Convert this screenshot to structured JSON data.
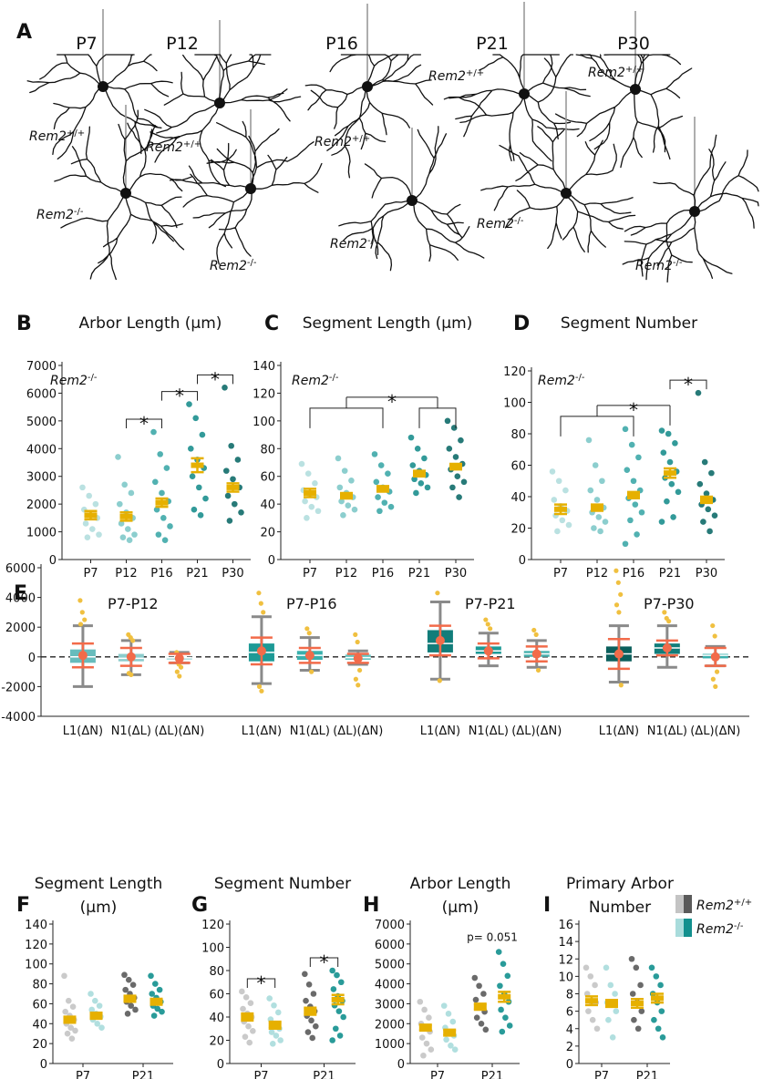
{
  "panel_a": {
    "letter": "A",
    "ages": [
      "P7",
      "P12",
      "P16",
      "P21",
      "P30"
    ],
    "wt_label": {
      "base": "Rem2",
      "sup": "+/+"
    },
    "ko_label": {
      "base": "Rem2",
      "sup": "-/-"
    }
  },
  "chart_data": [
    {
      "type": "strip",
      "letter": "B",
      "title": [
        "Arbor Length (µm)"
      ],
      "annotation": {
        "base": "Rem2",
        "sup": "-/-"
      },
      "categories": [
        "P7",
        "P12",
        "P16",
        "P21",
        "P30"
      ],
      "colors": [
        "#b2dede",
        "#7fc9c9",
        "#3ea8a8",
        "#1c8f8e",
        "#0f6b69"
      ],
      "mean_color": "#e6b000",
      "points": [
        [
          2600,
          2300,
          2000,
          1800,
          1600,
          1500,
          1300,
          1100,
          900,
          800
        ],
        [
          3700,
          2700,
          2400,
          2000,
          1700,
          1500,
          1300,
          1100,
          900,
          800,
          700
        ],
        [
          4600,
          3800,
          3300,
          2800,
          2400,
          2100,
          1800,
          1500,
          1200,
          900,
          700
        ],
        [
          5600,
          5100,
          4500,
          4000,
          3600,
          3300,
          3000,
          2600,
          2200,
          1800,
          1600
        ],
        [
          6200,
          4100,
          3600,
          3200,
          2900,
          2600,
          2300,
          2000,
          1700,
          1400
        ]
      ],
      "means": [
        1600,
        1550,
        2050,
        3400,
        2600
      ],
      "sems": [
        150,
        150,
        150,
        250,
        150
      ],
      "ylim": [
        0,
        7000
      ],
      "yticks": [
        0,
        1000,
        2000,
        3000,
        4000,
        5000,
        6000,
        7000
      ],
      "brackets": [
        {
          "groups": [
            [
              1
            ],
            [
              2
            ]
          ],
          "label": "*"
        },
        {
          "groups": [
            [
              2
            ],
            [
              3
            ]
          ],
          "label": "*"
        },
        {
          "groups": [
            [
              3
            ],
            [
              4
            ]
          ],
          "label": "*"
        }
      ]
    },
    {
      "type": "strip",
      "letter": "C",
      "title": [
        "Segment Length (µm)"
      ],
      "annotation": {
        "base": "Rem2",
        "sup": "-/-"
      },
      "categories": [
        "P7",
        "P12",
        "P16",
        "P21",
        "P30"
      ],
      "colors": [
        "#b2dede",
        "#7fc9c9",
        "#3ea8a8",
        "#1c8f8e",
        "#0f6b69"
      ],
      "mean_color": "#e6b000",
      "points": [
        [
          69,
          62,
          55,
          50,
          47,
          45,
          42,
          38,
          35,
          30
        ],
        [
          73,
          64,
          57,
          52,
          48,
          45,
          42,
          39,
          36,
          32
        ],
        [
          76,
          68,
          62,
          56,
          52,
          49,
          45,
          41,
          38,
          35
        ],
        [
          88,
          80,
          73,
          68,
          64,
          61,
          58,
          55,
          52,
          48
        ],
        [
          100,
          95,
          86,
          80,
          74,
          69,
          65,
          60,
          56,
          52,
          45
        ]
      ],
      "means": [
        48,
        46,
        51,
        62,
        67
      ],
      "sems": [
        3,
        2,
        2,
        2,
        2
      ],
      "ylim": [
        0,
        140
      ],
      "yticks": [
        0,
        20,
        40,
        60,
        80,
        100,
        120,
        140
      ],
      "brackets": [
        {
          "groups": [
            [
              0,
              2
            ],
            [
              3,
              4
            ]
          ],
          "label": "*"
        }
      ]
    },
    {
      "type": "strip",
      "letter": "D",
      "title": [
        "Segment Number"
      ],
      "annotation": {
        "base": "Rem2",
        "sup": "-/-"
      },
      "categories": [
        "P7",
        "P12",
        "P16",
        "P21",
        "P30"
      ],
      "colors": [
        "#b2dede",
        "#7fc9c9",
        "#3ea8a8",
        "#1c8f8e",
        "#0f6b69"
      ],
      "mean_color": "#e6b000",
      "points": [
        [
          56,
          50,
          44,
          38,
          34,
          31,
          28,
          25,
          22,
          18
        ],
        [
          76,
          60,
          50,
          44,
          38,
          33,
          30,
          27,
          24,
          20,
          18
        ],
        [
          83,
          73,
          65,
          57,
          50,
          44,
          39,
          35,
          30,
          25,
          16,
          10
        ],
        [
          82,
          80,
          74,
          68,
          62,
          56,
          52,
          48,
          43,
          37,
          27,
          24
        ],
        [
          106,
          62,
          55,
          48,
          42,
          38,
          35,
          32,
          28,
          24,
          18
        ]
      ],
      "means": [
        32,
        33,
        41,
        55,
        38
      ],
      "sems": [
        3,
        2,
        2,
        3,
        2
      ],
      "ylim": [
        0,
        120
      ],
      "yticks": [
        0,
        20,
        40,
        60,
        80,
        100,
        120
      ],
      "brackets": [
        {
          "groups": [
            [
              0,
              2
            ],
            [
              3
            ]
          ],
          "label": "*"
        },
        {
          "groups": [
            [
              3
            ],
            [
              4
            ]
          ],
          "label": "*"
        }
      ]
    },
    {
      "type": "box",
      "letter": "E",
      "ylim": [
        -4000,
        6000
      ],
      "yticks": [
        -4000,
        -2000,
        0,
        2000,
        4000,
        6000
      ],
      "reference_line": 0,
      "whisker_color": "#8a8a8a",
      "err_color": "#f26b4a",
      "point_color": "#f0c040",
      "groups": [
        {
          "title": "P7-P12",
          "categories": [
            "L1(ΔN)",
            "N1(ΔL)",
            "(ΔL)(ΔN)"
          ],
          "colors": [
            "#67bcbc",
            "#8ccccc",
            "#b3e0e0"
          ],
          "boxes": [
            {
              "whislo": -2000,
              "q1": -400,
              "med": 0,
              "q3": 500,
              "whishi": 2100,
              "mean": 100,
              "err": 800,
              "points": [
                3800,
                3000,
                2500,
                2200
              ]
            },
            {
              "whislo": -1200,
              "q1": -300,
              "med": -100,
              "q3": 200,
              "whishi": 1100,
              "mean": 0,
              "err": 600,
              "points": [
                1500,
                1300,
                1100,
                -1100,
                -1200
              ]
            },
            {
              "whislo": -400,
              "q1": -200,
              "med": -50,
              "q3": 0,
              "whishi": 300,
              "mean": -100,
              "err": 300,
              "points": [
                300,
                -500,
                -700,
                -1000,
                -1300
              ]
            }
          ]
        },
        {
          "title": "P7-P16",
          "categories": [
            "L1(ΔN)",
            "N1(ΔL)",
            "(ΔL)(ΔN)"
          ],
          "colors": [
            "#1d9a96",
            "#3ab0ad",
            "#66c4c1"
          ],
          "boxes": [
            {
              "whislo": -1800,
              "q1": -300,
              "med": 300,
              "q3": 900,
              "whishi": 2700,
              "mean": 400,
              "err": 900,
              "points": [
                4300,
                3600,
                3000,
                -2000,
                -2300
              ]
            },
            {
              "whislo": -900,
              "q1": -200,
              "med": 100,
              "q3": 400,
              "whishi": 1300,
              "mean": 100,
              "err": 500,
              "points": [
                1900,
                1600,
                -1000
              ]
            },
            {
              "whislo": -500,
              "q1": -200,
              "med": -50,
              "q3": 150,
              "whishi": 400,
              "mean": -100,
              "err": 300,
              "points": [
                1500,
                1000,
                -900,
                -1500,
                -1900
              ]
            }
          ]
        },
        {
          "title": "P7-P21",
          "categories": [
            "L1(ΔN)",
            "N1(ΔL)",
            "(ΔL)(ΔN)"
          ],
          "colors": [
            "#117d7a",
            "#1d9a96",
            "#4ab3b0"
          ],
          "boxes": [
            {
              "whislo": -1500,
              "q1": 300,
              "med": 900,
              "q3": 1800,
              "whishi": 3700,
              "mean": 1100,
              "err": 1000,
              "points": [
                4300,
                -1600
              ]
            },
            {
              "whislo": -600,
              "q1": 200,
              "med": 400,
              "q3": 700,
              "whishi": 1600,
              "mean": 400,
              "err": 500,
              "points": [
                2500,
                2200,
                1900
              ]
            },
            {
              "whislo": -700,
              "q1": 0,
              "med": 200,
              "q3": 400,
              "whishi": 1100,
              "mean": 200,
              "err": 500,
              "points": [
                1800,
                1500,
                -900
              ]
            }
          ]
        },
        {
          "title": "P7-P30",
          "categories": [
            "L1(ΔN)",
            "N1(ΔL)",
            "(ΔL)(ΔN)"
          ],
          "colors": [
            "#0b5f5c",
            "#117d7a",
            "#3ab0ad"
          ],
          "boxes": [
            {
              "whislo": -1700,
              "q1": -300,
              "med": 200,
              "q3": 700,
              "whishi": 2100,
              "mean": 200,
              "err": 1000,
              "points": [
                5800,
                5000,
                4200,
                3500,
                3000,
                -1900
              ]
            },
            {
              "whislo": -700,
              "q1": 200,
              "med": 600,
              "q3": 900,
              "whishi": 2100,
              "mean": 600,
              "err": 500,
              "points": [
                3000,
                2600,
                2400
              ]
            },
            {
              "whislo": -600,
              "q1": -100,
              "med": 100,
              "q3": 200,
              "whishi": 700,
              "mean": 0,
              "err": 600,
              "points": [
                2100,
                1400,
                -1000,
                -1500,
                -2000
              ]
            }
          ]
        }
      ]
    },
    {
      "type": "grouped_strip",
      "letter": "F",
      "title": [
        "Segment Length",
        "(µm)"
      ],
      "categories": [
        "P7",
        "P21"
      ],
      "mean_color": "#e6b000",
      "series": [
        {
          "colors": [
            "#c4c4c4",
            "#5a5a5a"
          ],
          "points": [
            [
              88,
              63,
              57,
              52,
              48,
              44,
              40,
              36,
              33,
              30,
              25
            ],
            [
              89,
              84,
              79,
              74,
              70,
              66,
              62,
              58,
              54,
              50
            ]
          ],
          "means": [
            44,
            65
          ],
          "sems": [
            3,
            3
          ]
        },
        {
          "colors": [
            "#a9dcdc",
            "#12908e"
          ],
          "points": [
            [
              70,
              63,
              58,
              54,
              50,
              47,
              44,
              40,
              36
            ],
            [
              88,
              80,
              74,
              70,
              66,
              62,
              58,
              55,
              52,
              48
            ]
          ],
          "means": [
            48,
            62
          ],
          "sems": [
            3,
            3
          ]
        }
      ],
      "ylim": [
        0,
        140
      ],
      "yticks": [
        0,
        20,
        40,
        60,
        80,
        100,
        120,
        140
      ]
    },
    {
      "type": "grouped_strip",
      "letter": "G",
      "title": [
        "Segment Number"
      ],
      "categories": [
        "P7",
        "P21"
      ],
      "mean_color": "#e6b000",
      "series": [
        {
          "colors": [
            "#c4c4c4",
            "#5a5a5a"
          ],
          "points": [
            [
              62,
              57,
              52,
              47,
              43,
              40,
              36,
              32,
              28,
              23,
              18
            ],
            [
              77,
              68,
              60,
              54,
              49,
              45,
              41,
              37,
              32,
              27,
              22
            ]
          ],
          "means": [
            40,
            45
          ],
          "sems": [
            3,
            3
          ]
        },
        {
          "colors": [
            "#a9dcdc",
            "#12908e"
          ],
          "points": [
            [
              56,
              50,
              44,
              38,
              34,
              30,
              27,
              24,
              20,
              17
            ],
            [
              80,
              76,
              70,
              64,
              58,
              54,
              50,
              45,
              40,
              30,
              24,
              20
            ]
          ],
          "means": [
            33,
            55
          ],
          "sems": [
            3,
            4
          ]
        }
      ],
      "ylim": [
        0,
        120
      ],
      "yticks": [
        0,
        20,
        40,
        60,
        80,
        100,
        120
      ],
      "brackets": [
        {
          "category": 0,
          "label": "*"
        },
        {
          "category": 1,
          "label": "*"
        }
      ]
    },
    {
      "type": "grouped_strip",
      "letter": "H",
      "title": [
        "Arbor Length",
        "(µm)"
      ],
      "categories": [
        "P7",
        "P21"
      ],
      "mean_color": "#e6b000",
      "annotation_text": "p= 0.051",
      "series": [
        {
          "colors": [
            "#c4c4c4",
            "#5a5a5a"
          ],
          "points": [
            [
              3100,
              2700,
              2300,
              2000,
              1800,
              1600,
              1300,
              1000,
              700,
              400
            ],
            [
              4300,
              3900,
              3500,
              3200,
              2900,
              2600,
              2300,
              2000,
              1700
            ]
          ],
          "means": [
            1800,
            2850
          ],
          "sems": [
            150,
            150
          ]
        },
        {
          "colors": [
            "#a9dcdc",
            "#12908e"
          ],
          "points": [
            [
              2900,
              2500,
              2100,
              1800,
              1600,
              1400,
              1200,
              900,
              700
            ],
            [
              5600,
              5000,
              4400,
              3900,
              3500,
              3100,
              2700,
              2300,
              1900,
              1600
            ]
          ],
          "means": [
            1550,
            3350
          ],
          "sems": [
            150,
            250
          ]
        }
      ],
      "ylim": [
        0,
        7000
      ],
      "yticks": [
        0,
        1000,
        2000,
        3000,
        4000,
        5000,
        6000,
        7000
      ]
    },
    {
      "type": "grouped_strip",
      "letter": "I",
      "title": [
        "Primary Arbor",
        "Number"
      ],
      "categories": [
        "P7",
        "P21"
      ],
      "mean_color": "#e6b000",
      "legend": "right",
      "series": [
        {
          "name": {
            "base": "Rem2",
            "sup": "+/+"
          },
          "colors": [
            "#c4c4c4",
            "#5a5a5a"
          ],
          "points": [
            [
              11,
              10,
              9,
              8,
              7,
              7,
              6,
              5,
              4
            ],
            [
              12,
              11,
              9,
              8,
              7,
              6,
              5,
              4
            ]
          ],
          "means": [
            7.2,
            6.9
          ],
          "sems": [
            0.5,
            0.5
          ]
        },
        {
          "name": {
            "base": "Rem2",
            "sup": "-/-"
          },
          "colors": [
            "#a9dcdc",
            "#12908e"
          ],
          "points": [
            [
              11,
              9,
              8,
              7,
              7,
              6,
              5,
              3
            ],
            [
              11,
              10,
              9,
              8,
              7,
              6,
              5,
              4,
              3
            ]
          ],
          "means": [
            6.9,
            7.5
          ],
          "sems": [
            0.4,
            0.5
          ]
        }
      ],
      "ylim": [
        0,
        16
      ],
      "yticks": [
        0,
        2,
        4,
        6,
        8,
        10,
        12,
        14,
        16
      ]
    }
  ]
}
